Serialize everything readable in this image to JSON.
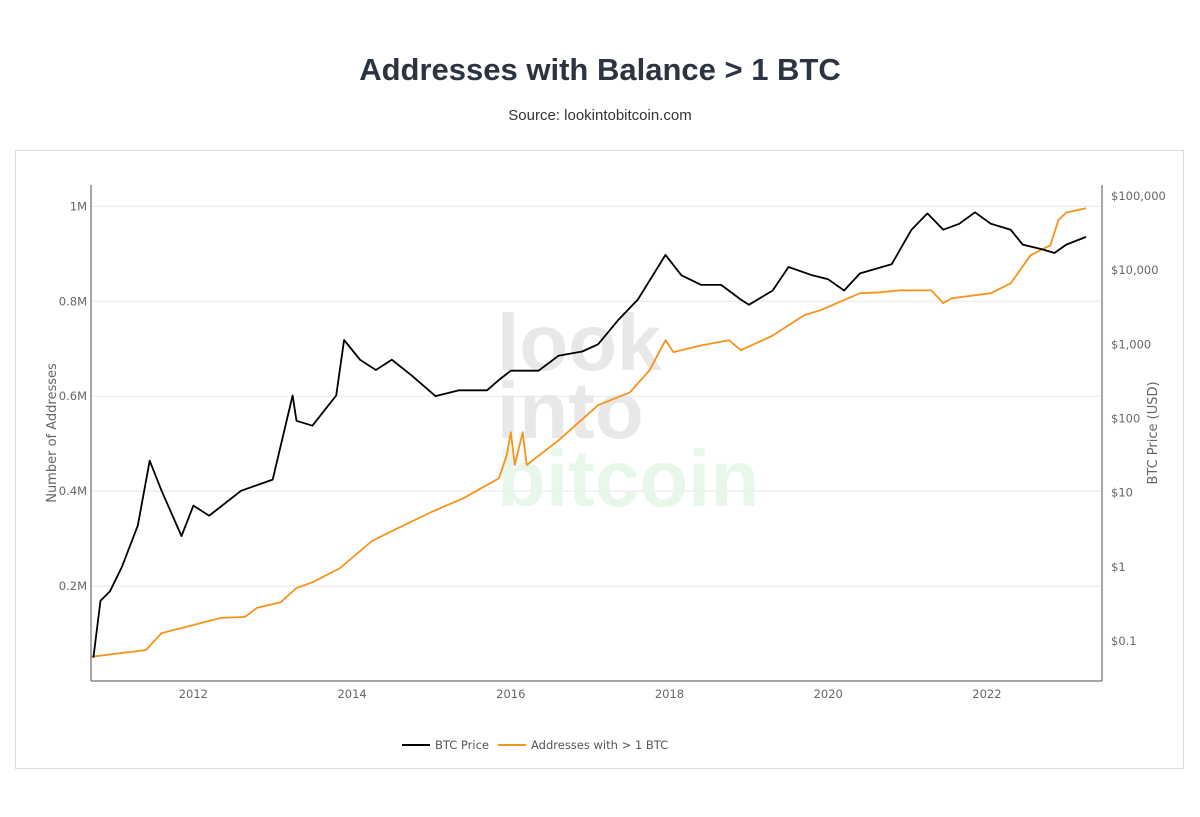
{
  "header": {
    "title": "Addresses with Balance > 1 BTC",
    "subtitle": "Source: lookintobitcoin.com"
  },
  "watermark": {
    "lines": [
      "look",
      "into",
      "bitcoin"
    ]
  },
  "chart_data": {
    "type": "line",
    "title": "Addresses with Balance > 1 BTC",
    "subtitle": "Source: lookintobitcoin.com",
    "xlabel": "",
    "x_ticks": [
      "2012",
      "2014",
      "2016",
      "2018",
      "2020",
      "2022"
    ],
    "x_range": [
      2010.71,
      2023.45
    ],
    "y_left": {
      "label": "Number of Addresses",
      "range": [
        0,
        1.045
      ],
      "unit": "M",
      "ticks": [
        {
          "v": 0.2,
          "label": "0.2M"
        },
        {
          "v": 0.4,
          "label": "0.4M"
        },
        {
          "v": 0.6,
          "label": "0.6M"
        },
        {
          "v": 0.8,
          "label": "0.8M"
        },
        {
          "v": 1.0,
          "label": "1M"
        }
      ],
      "grid": true
    },
    "y_right": {
      "label": "BTC Price (USD)",
      "scale": "log",
      "range": [
        0.029,
        140000
      ],
      "ticks": [
        {
          "v": 0.1,
          "label": "$0.1"
        },
        {
          "v": 1,
          "label": "$1"
        },
        {
          "v": 10,
          "label": "$10"
        },
        {
          "v": 100,
          "label": "$100"
        },
        {
          "v": 1000,
          "label": "$1,000"
        },
        {
          "v": 10000,
          "label": "$10,000"
        },
        {
          "v": 100000,
          "label": "$100,000"
        }
      ]
    },
    "legend_position": "bottom-center",
    "series": [
      {
        "name": "BTC Price",
        "axis": "right",
        "color": "#000000",
        "x": [
          2010.74,
          2010.83,
          2010.95,
          2011.1,
          2011.3,
          2011.45,
          2011.6,
          2011.85,
          2012.0,
          2012.2,
          2012.6,
          2013.0,
          2013.25,
          2013.3,
          2013.5,
          2013.8,
          2013.9,
          2014.1,
          2014.3,
          2014.5,
          2014.75,
          2015.05,
          2015.35,
          2015.7,
          2015.85,
          2016.0,
          2016.35,
          2016.6,
          2016.9,
          2017.1,
          2017.35,
          2017.6,
          2017.95,
          2018.15,
          2018.4,
          2018.65,
          2018.9,
          2019.0,
          2019.3,
          2019.5,
          2019.8,
          2020.0,
          2020.2,
          2020.4,
          2020.8,
          2021.05,
          2021.25,
          2021.45,
          2021.65,
          2021.85,
          2022.05,
          2022.3,
          2022.45,
          2022.7,
          2022.85,
          2023.0,
          2023.25
        ],
        "y": [
          0.06,
          0.35,
          0.47,
          1.0,
          3.6,
          27,
          10.6,
          2.6,
          6.7,
          4.9,
          10.6,
          15,
          204,
          93,
          80,
          204,
          1140,
          620,
          450,
          620,
          380,
          200,
          240,
          240,
          330,
          440,
          440,
          700,
          800,
          1000,
          2100,
          4000,
          16000,
          8500,
          6300,
          6300,
          4000,
          3400,
          5300,
          11000,
          8500,
          7500,
          5300,
          9000,
          12000,
          35000,
          58000,
          35000,
          42000,
          60000,
          42000,
          35000,
          22000,
          19000,
          17000,
          22000,
          28000
        ]
      },
      {
        "name": "Addresses with > 1 BTC",
        "axis": "left",
        "color": "#f7931a",
        "x": [
          2010.71,
          2011.4,
          2011.6,
          2012.0,
          2012.35,
          2012.65,
          2012.8,
          2013.1,
          2013.3,
          2013.5,
          2013.85,
          2014.25,
          2014.65,
          2015.0,
          2015.4,
          2015.85,
          2015.95,
          2016.0,
          2016.05,
          2016.15,
          2016.2,
          2016.6,
          2017.1,
          2017.5,
          2017.75,
          2017.95,
          2018.05,
          2018.4,
          2018.75,
          2018.9,
          2019.3,
          2019.7,
          2019.9,
          2020.4,
          2020.65,
          2020.9,
          2021.3,
          2021.45,
          2021.55,
          2022.05,
          2022.3,
          2022.55,
          2022.8,
          2022.9,
          2023.0,
          2023.25
        ],
        "y": [
          0.051,
          0.065,
          0.101,
          0.118,
          0.133,
          0.135,
          0.154,
          0.166,
          0.196,
          0.208,
          0.238,
          0.295,
          0.328,
          0.356,
          0.385,
          0.427,
          0.476,
          0.524,
          0.455,
          0.524,
          0.455,
          0.507,
          0.581,
          0.608,
          0.655,
          0.718,
          0.693,
          0.707,
          0.718,
          0.697,
          0.728,
          0.771,
          0.781,
          0.817,
          0.819,
          0.823,
          0.823,
          0.796,
          0.806,
          0.817,
          0.838,
          0.897,
          0.918,
          0.971,
          0.987,
          0.996
        ]
      }
    ]
  }
}
